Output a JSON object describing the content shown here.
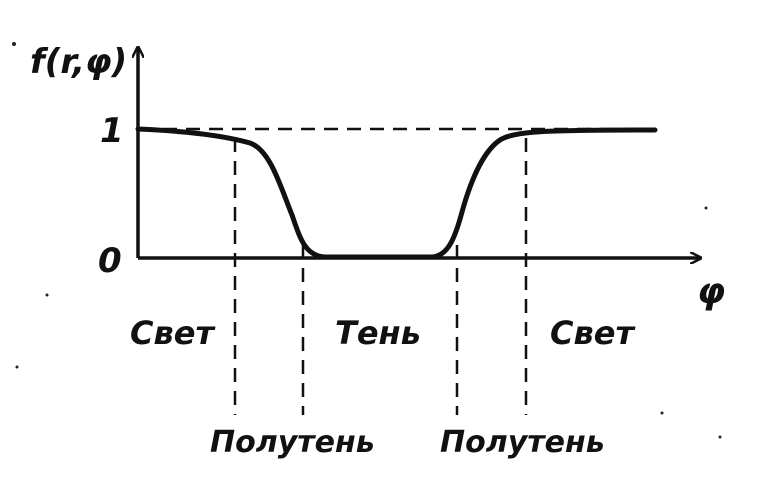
{
  "diagram": {
    "y_axis_label": "f(r,φ)",
    "x_axis_label": "φ",
    "y_tick_1": "1",
    "y_tick_0": "0",
    "region_light_left": "Свет",
    "region_shadow": "Тень",
    "region_light_right": "Свет",
    "penumbra_left": "Полутень",
    "penumbra_right": "Полутень"
  }
}
